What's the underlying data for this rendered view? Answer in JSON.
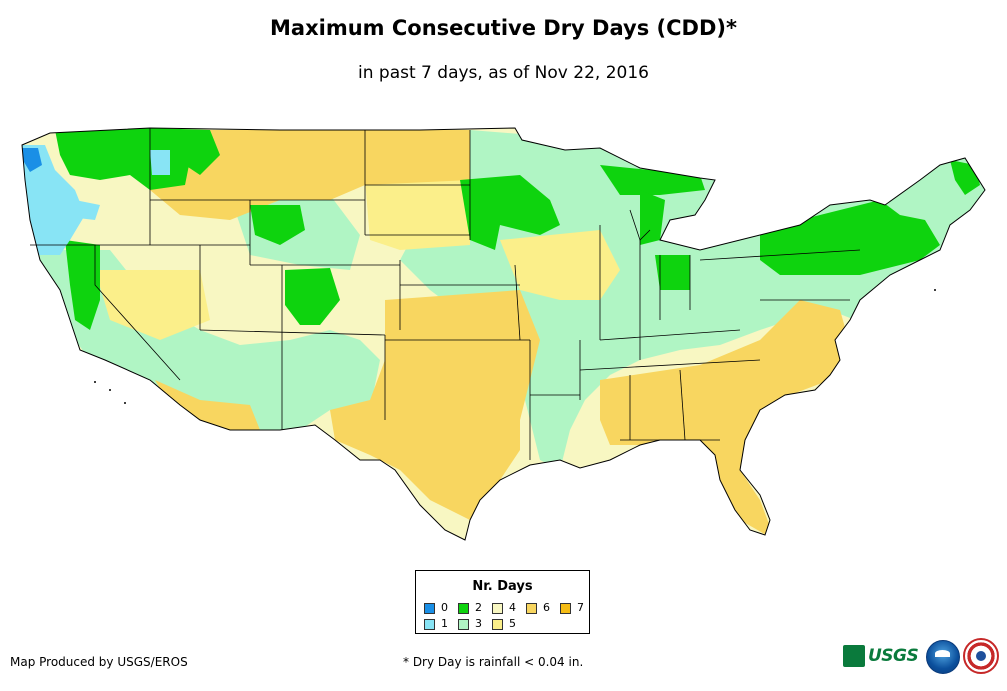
{
  "title": "Maximum Consecutive Dry Days (CDD)*",
  "subtitle": "in past 7 days, as of Nov 22, 2016",
  "legend": {
    "title": "Nr. Days",
    "items": [
      {
        "label": "0",
        "color": "#1a8fe6"
      },
      {
        "label": "1",
        "color": "#88e4f5"
      },
      {
        "label": "2",
        "color": "#0ed30e"
      },
      {
        "label": "3",
        "color": "#b0f5c4"
      },
      {
        "label": "4",
        "color": "#f8f7c2"
      },
      {
        "label": "5",
        "color": "#fbef8a"
      },
      {
        "label": "6",
        "color": "#f8d660"
      },
      {
        "label": "7",
        "color": "#f5bc14"
      }
    ]
  },
  "credit": "Map Produced by USGS/EROS",
  "footnote": "* Dry Day is rainfall < 0.04 in.",
  "logos": {
    "usgs": "USGS",
    "noaa": "noaa-logo",
    "nws": "nws-logo"
  }
}
